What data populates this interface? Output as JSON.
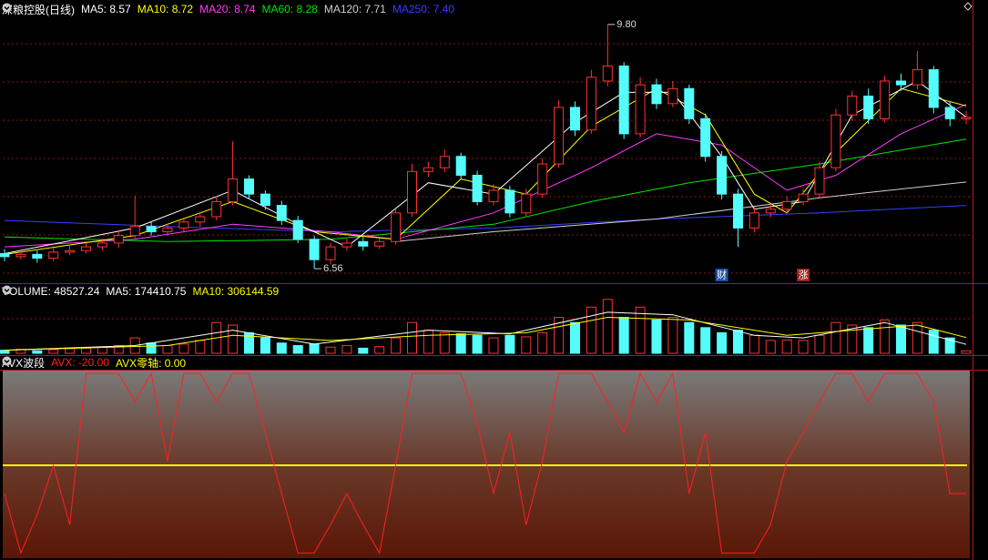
{
  "header": {
    "title": "深粮控股(日线)"
  },
  "chart_data": [
    {
      "type": "candlestick",
      "open": [
        6.76,
        6.72,
        6.75,
        6.7,
        6.78,
        6.8,
        6.85,
        6.9,
        7.0,
        7.12,
        7.05,
        7.1,
        7.18,
        7.25,
        7.45,
        7.75,
        7.55,
        7.4,
        7.2,
        6.95,
        6.68,
        6.85,
        6.92,
        6.86,
        6.92,
        7.3,
        7.85,
        7.9,
        8.05,
        7.8,
        7.45,
        7.6,
        7.3,
        7.55,
        7.95,
        8.7,
        8.4,
        9.05,
        9.25,
        8.35,
        9.0,
        8.75,
        8.95,
        8.55,
        8.05,
        7.55,
        7.1,
        7.3,
        7.35,
        7.45,
        7.55,
        7.9,
        8.6,
        8.85,
        8.55,
        9.05,
        9.0,
        9.2,
        8.7,
        8.55
      ],
      "high": [
        6.82,
        6.8,
        6.8,
        6.84,
        6.86,
        6.9,
        6.96,
        7.06,
        7.53,
        7.18,
        7.16,
        7.24,
        7.32,
        7.52,
        8.25,
        7.8,
        7.6,
        7.46,
        7.26,
        7.0,
        6.9,
        6.96,
        6.98,
        6.96,
        7.36,
        7.95,
        7.98,
        8.14,
        8.1,
        7.86,
        7.68,
        7.66,
        7.62,
        8.02,
        8.8,
        8.78,
        9.2,
        9.8,
        9.3,
        9.1,
        9.08,
        9.05,
        9.0,
        8.62,
        8.12,
        7.62,
        7.38,
        7.42,
        7.52,
        7.62,
        7.98,
        8.68,
        8.92,
        8.95,
        9.12,
        9.15,
        9.45,
        9.25,
        8.78,
        8.65
      ],
      "low": [
        6.66,
        6.68,
        6.64,
        6.66,
        6.74,
        6.76,
        6.8,
        6.84,
        6.95,
        7.0,
        7.0,
        7.04,
        7.12,
        7.2,
        7.4,
        7.48,
        7.34,
        7.14,
        6.9,
        6.56,
        6.62,
        6.8,
        6.8,
        6.82,
        6.88,
        7.25,
        7.78,
        7.84,
        7.74,
        7.4,
        7.4,
        7.24,
        7.26,
        7.5,
        7.9,
        8.32,
        8.35,
        8.98,
        8.28,
        8.3,
        8.68,
        8.7,
        8.48,
        7.98,
        7.48,
        6.85,
        7.04,
        7.24,
        7.3,
        7.4,
        7.5,
        7.85,
        8.52,
        8.48,
        8.5,
        8.92,
        8.94,
        8.62,
        8.45,
        8.48
      ],
      "close": [
        6.72,
        6.75,
        6.7,
        6.78,
        6.8,
        6.85,
        6.9,
        7.0,
        7.12,
        7.05,
        7.1,
        7.18,
        7.25,
        7.45,
        7.75,
        7.55,
        7.4,
        7.2,
        6.95,
        6.68,
        6.85,
        6.9,
        6.86,
        6.92,
        7.3,
        7.85,
        7.9,
        8.05,
        7.8,
        7.45,
        7.6,
        7.3,
        7.55,
        7.95,
        8.7,
        8.4,
        9.1,
        9.25,
        8.35,
        9.0,
        8.75,
        8.95,
        8.55,
        8.05,
        7.55,
        7.1,
        7.3,
        7.35,
        7.45,
        7.55,
        7.9,
        8.6,
        8.85,
        8.55,
        9.05,
        9.0,
        9.2,
        8.7,
        8.55,
        8.57
      ],
      "up_color": "#ff3232",
      "down_color": "#54fcfc",
      "ylim": [
        6.38,
        9.98
      ],
      "lines": [
        {
          "label": "MA5: 8.57",
          "color": "#ffffff",
          "x": [
            0,
            8,
            14,
            18,
            21,
            26,
            30,
            35,
            38,
            41,
            44,
            46,
            49,
            52,
            56,
            59
          ],
          "values": [
            6.76,
            7.1,
            7.6,
            7.15,
            6.85,
            7.7,
            7.55,
            8.5,
            8.9,
            8.9,
            8.05,
            7.35,
            7.45,
            8.6,
            9.05,
            8.57
          ]
        },
        {
          "label": "MA10: 8.72",
          "color": "#ffff00",
          "x": [
            0,
            8,
            14,
            19,
            24,
            28,
            32,
            36,
            40,
            43,
            46,
            48,
            51,
            55,
            59
          ],
          "values": [
            6.75,
            7.0,
            7.45,
            7.05,
            6.95,
            7.75,
            7.55,
            8.45,
            8.95,
            8.6,
            7.55,
            7.3,
            8.1,
            8.95,
            8.72
          ]
        },
        {
          "label": "MA20: 8.74",
          "color": "#ff3cff",
          "x": [
            0,
            8,
            14,
            20,
            24,
            30,
            36,
            40,
            44,
            48,
            51,
            55,
            59
          ],
          "values": [
            6.85,
            6.95,
            7.15,
            7.05,
            6.95,
            7.3,
            7.9,
            8.35,
            8.2,
            7.6,
            7.8,
            8.35,
            8.74
          ]
        },
        {
          "label": "MA60: 8.28",
          "color": "#00e600",
          "x": [
            0,
            10,
            20,
            30,
            36,
            42,
            50,
            59
          ],
          "values": [
            6.98,
            6.92,
            6.95,
            7.15,
            7.45,
            7.7,
            7.95,
            8.28
          ]
        },
        {
          "label": "MA120: 7.71",
          "color": "#d0d0d0",
          "x": [
            24,
            30,
            40,
            50,
            59
          ],
          "values": [
            6.92,
            7.05,
            7.22,
            7.5,
            7.71
          ]
        },
        {
          "label": "MA250: 7.40",
          "color": "#3c3cff",
          "x": [
            0,
            10,
            20,
            30,
            40,
            50,
            59
          ],
          "values": [
            7.2,
            7.12,
            7.05,
            7.1,
            7.22,
            7.3,
            7.4
          ]
        }
      ],
      "annotations": [
        {
          "label": "9.80",
          "x": 37,
          "value": 9.8
        },
        {
          "label": "6.56",
          "x": 19,
          "value": 6.56
        }
      ],
      "markers": [
        {
          "text": "财",
          "x": 44,
          "color": "#2050a0"
        },
        {
          "text": "涨",
          "x": 49,
          "color": "#a02020"
        }
      ]
    },
    {
      "type": "bar",
      "title": "VOLUME: 48527.24",
      "values": [
        60000,
        80000,
        50000,
        70000,
        90000,
        100000,
        120000,
        150000,
        300000,
        200000,
        150000,
        180000,
        250000,
        600000,
        550000,
        400000,
        300000,
        200000,
        150000,
        180000,
        120000,
        150000,
        100000,
        130000,
        300000,
        600000,
        450000,
        400000,
        380000,
        350000,
        300000,
        350000,
        320000,
        400000,
        700000,
        600000,
        900000,
        1050000,
        700000,
        900000,
        650000,
        700000,
        600000,
        500000,
        400000,
        450000,
        350000,
        250000,
        260000,
        250000,
        350000,
        600000,
        550000,
        500000,
        650000,
        550000,
        600000,
        450000,
        300000,
        48527.24
      ],
      "ylim": [
        0,
        1100000
      ],
      "lines": [
        {
          "label": "MA5: 174410.75",
          "color": "#ffffff",
          "x": [
            0,
            8,
            14,
            19,
            26,
            31,
            37,
            41,
            46,
            49,
            54,
            59
          ],
          "values": [
            60000,
            150000,
            450000,
            180000,
            450000,
            380000,
            800000,
            750000,
            350000,
            300000,
            600000,
            174410.75
          ]
        },
        {
          "label": "MA10: 306144.59",
          "color": "#ffff00",
          "x": [
            0,
            10,
            14,
            20,
            26,
            32,
            37,
            42,
            48,
            52,
            56,
            59
          ],
          "values": [
            60000,
            150000,
            350000,
            250000,
            350000,
            400000,
            700000,
            650000,
            350000,
            450000,
            550000,
            306144.59
          ]
        }
      ]
    },
    {
      "type": "line",
      "title": "AVX波段",
      "series": [
        {
          "label": "AVX: -20.00",
          "color": "#ff2020",
          "values": [
            -20,
            -62,
            -35,
            0,
            -42,
            65,
            65,
            65,
            45,
            65,
            3,
            65,
            65,
            45,
            65,
            65,
            23,
            -20,
            -62,
            -62,
            -42,
            -20,
            -42,
            -62,
            0,
            65,
            65,
            65,
            65,
            30,
            -20,
            23,
            -42,
            3,
            65,
            65,
            65,
            45,
            23,
            65,
            45,
            65,
            -20,
            23,
            -62,
            -62,
            -62,
            -42,
            3,
            23,
            45,
            65,
            65,
            45,
            65,
            65,
            65,
            45,
            -20,
            -20
          ]
        }
      ],
      "zero": {
        "label": "AVX零轴: 0.00",
        "value": 0,
        "color": "#ffff00"
      },
      "ylim": [
        -65,
        67
      ]
    }
  ]
}
